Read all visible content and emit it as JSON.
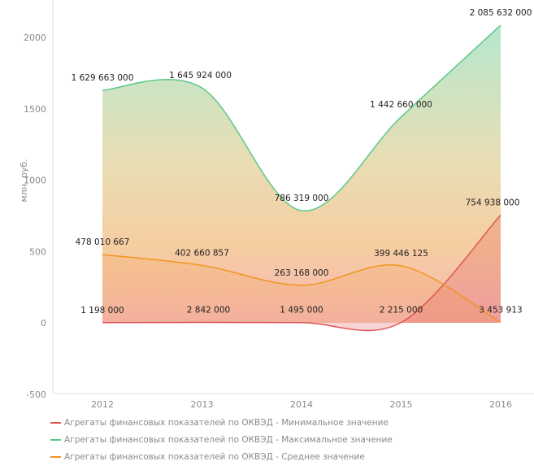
{
  "chart_data": {
    "type": "area",
    "ylabel": "млн. руб.",
    "ylim": [
      -500,
      2250
    ],
    "yticks": [
      -500,
      0,
      500,
      1000,
      1500,
      2000
    ],
    "categories": [
      "2012",
      "2013",
      "2014",
      "2015",
      "2016"
    ],
    "grid": false,
    "legend": "bottom",
    "series": [
      {
        "name": "Агрегаты финансовых показателей по ОКВЭД - Минимальное значение",
        "color": "#e05555",
        "values": [
          1.198,
          2.842,
          1.495,
          2.215,
          754.938
        ],
        "labels": [
          "1 198 000",
          "2 842 000",
          "1 495 000",
          "2 215 000",
          "754 938 000"
        ]
      },
      {
        "name": "Агрегаты финансовых показателей по ОКВЭД - Максимальное значение",
        "color": "#5cc98a",
        "values": [
          1629.663,
          1645.924,
          786.319,
          1442.66,
          2085.632
        ],
        "labels": [
          "1 629 663 000",
          "1 645 924 000",
          "786 319 000",
          "1 442 660 000",
          "2 085 632 000"
        ]
      },
      {
        "name": "Агрегаты финансовых показателей по ОКВЭД - Среднее значение",
        "color": "#f0961e",
        "values": [
          478.010667,
          402.660857,
          263.168,
          399.446125,
          3.453913
        ],
        "labels": [
          "478 010 667",
          "402 660 857",
          "263 168 000",
          "399 446 125",
          "3 453 913"
        ]
      }
    ]
  }
}
